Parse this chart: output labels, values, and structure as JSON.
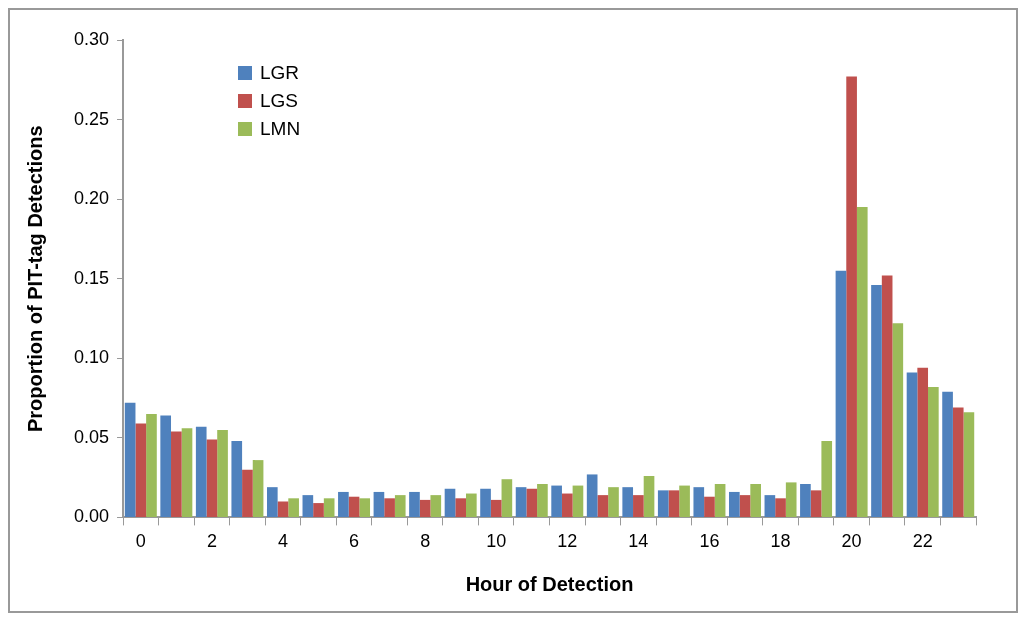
{
  "chart_data": {
    "type": "bar",
    "xlabel": "Hour of Detection",
    "ylabel": "Proportion of PIT-tag Detections",
    "categories": [
      "0",
      null,
      "2",
      null,
      "4",
      null,
      "6",
      null,
      "8",
      null,
      "10",
      null,
      "12",
      null,
      "14",
      null,
      "16",
      null,
      "18",
      null,
      "20",
      null,
      "22",
      null
    ],
    "series": [
      {
        "name": "LGR",
        "color": "#4f81bd",
        "values": [
          0.072,
          0.064,
          0.057,
          0.048,
          0.019,
          0.014,
          0.016,
          0.016,
          0.016,
          0.018,
          0.018,
          0.019,
          0.02,
          0.027,
          0.019,
          0.017,
          0.019,
          0.016,
          0.014,
          0.021,
          0.155,
          0.146,
          0.091,
          0.079
        ]
      },
      {
        "name": "LGS",
        "color": "#c0504d",
        "values": [
          0.059,
          0.054,
          0.049,
          0.03,
          0.01,
          0.009,
          0.013,
          0.012,
          0.011,
          0.012,
          0.011,
          0.018,
          0.015,
          0.014,
          0.014,
          0.017,
          0.013,
          0.014,
          0.012,
          0.017,
          0.277,
          0.152,
          0.094,
          0.069
        ]
      },
      {
        "name": "LMN",
        "color": "#9bbb59",
        "values": [
          0.065,
          0.056,
          0.055,
          0.036,
          0.012,
          0.012,
          0.012,
          0.014,
          0.014,
          0.015,
          0.024,
          0.021,
          0.02,
          0.019,
          0.026,
          0.02,
          0.021,
          0.021,
          0.022,
          0.048,
          0.195,
          0.122,
          0.082,
          0.066
        ]
      }
    ],
    "ylim": [
      0,
      0.3
    ],
    "yticks": [
      {
        "value": 0,
        "label": "0.00"
      },
      {
        "value": 0.05,
        "label": "0.05"
      },
      {
        "value": 0.1,
        "label": "0.10"
      },
      {
        "value": 0.15,
        "label": "0.15"
      },
      {
        "value": 0.2,
        "label": "0.20"
      },
      {
        "value": 0.25,
        "label": "0.25"
      },
      {
        "value": 0.3,
        "label": "0.30"
      }
    ],
    "grid": false,
    "legend": "top left"
  }
}
